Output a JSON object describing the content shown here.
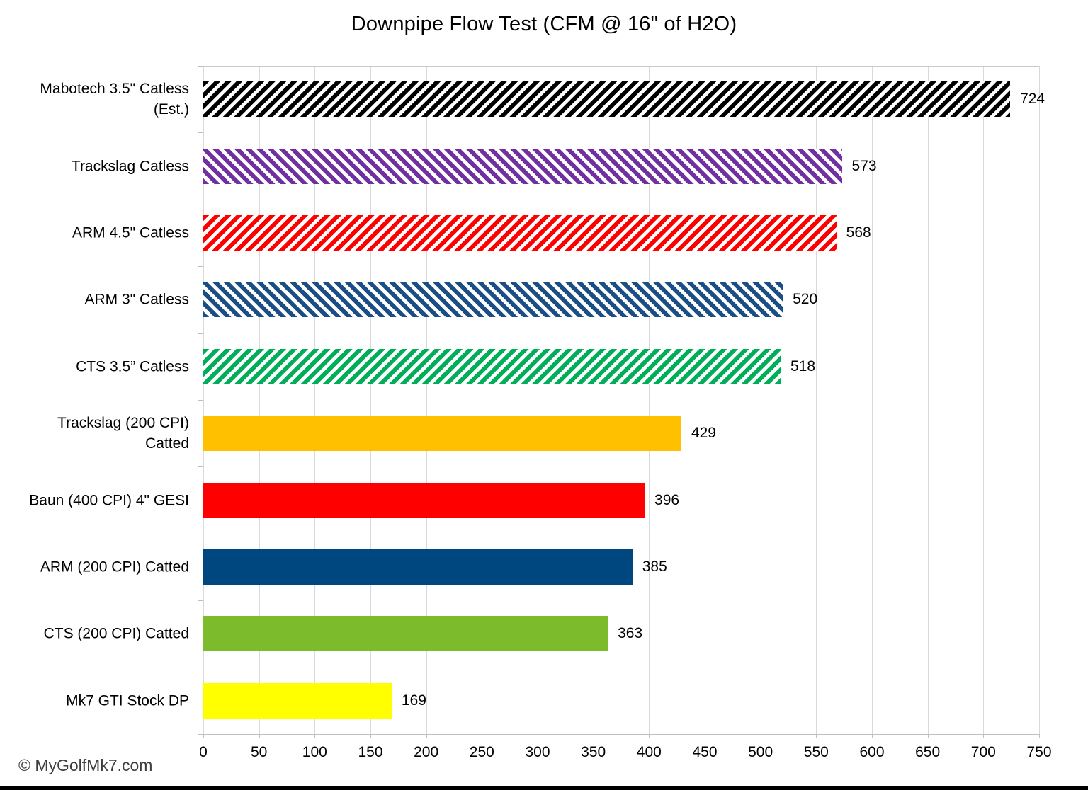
{
  "title": "Downpipe Flow Test (CFM @ 16\" of H2O)",
  "footer": {
    "credit": "© MyGolfMk7.com"
  },
  "chart_data": {
    "type": "bar",
    "orientation": "horizontal",
    "title": "Downpipe Flow Test (CFM @ 16\" of H2O)",
    "xlabel": "",
    "ylabel": "",
    "xlim": [
      0,
      750
    ],
    "x_ticks": [
      0,
      50,
      100,
      150,
      200,
      250,
      300,
      350,
      400,
      450,
      500,
      550,
      600,
      650,
      700,
      750
    ],
    "grid": true,
    "legend": false,
    "value_labels": true,
    "bars": [
      {
        "label": "Mabotech 3.5\" Catless\n(Est.)",
        "value": 724,
        "color": "#000000",
        "fill": "hatch-fwd"
      },
      {
        "label": "Trackslag Catless",
        "value": 573,
        "color": "#7030A0",
        "fill": "hatch-back"
      },
      {
        "label": "ARM 4.5\" Catless",
        "value": 568,
        "color": "#FF0000",
        "fill": "hatch-fwd"
      },
      {
        "label": "ARM 3\" Catless",
        "value": 520,
        "color": "#1A4E84",
        "fill": "hatch-back"
      },
      {
        "label": "CTS 3.5” Catless",
        "value": 518,
        "color": "#00AD58",
        "fill": "hatch-fwd"
      },
      {
        "label": "Trackslag (200 CPI)\nCatted",
        "value": 429,
        "color": "#FFC000",
        "fill": "solid"
      },
      {
        "label": "Baun (400 CPI) 4\" GESI",
        "value": 396,
        "color": "#FF0000",
        "fill": "solid"
      },
      {
        "label": "ARM (200 CPI) Catted",
        "value": 385,
        "color": "#00477F",
        "fill": "solid"
      },
      {
        "label": "CTS (200 CPI) Catted",
        "value": 363,
        "color": "#7CBB2C",
        "fill": "solid"
      },
      {
        "label": "Mk7 GTI Stock DP",
        "value": 169,
        "color": "#FFFF00",
        "fill": "solid"
      }
    ],
    "colors": {
      "gridline": "#D9D9D9",
      "axis": "#BFBFBF",
      "bottom_border": "#000000",
      "text": "#000000"
    }
  }
}
